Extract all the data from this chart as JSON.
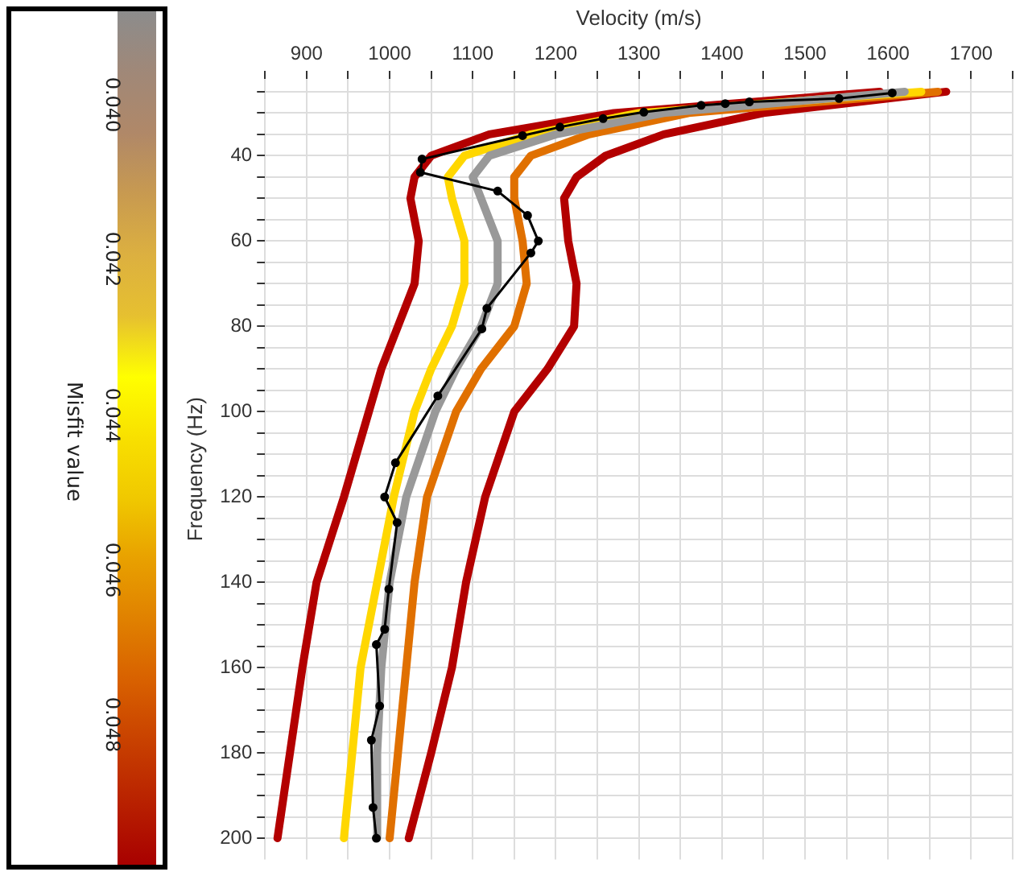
{
  "chart_data": {
    "type": "line",
    "xlabel": "Velocity (m/s)",
    "ylabel": "Frequency (Hz)",
    "clabel": "Misfit value",
    "clim": [
      0.0388,
      0.0498
    ],
    "cticks": [
      {
        "value": 0.04,
        "label": "0.040"
      },
      {
        "value": 0.042,
        "label": "0.042"
      },
      {
        "value": 0.044,
        "label": "0.044"
      },
      {
        "value": 0.046,
        "label": "0.046"
      },
      {
        "value": 0.048,
        "label": "0.048"
      }
    ],
    "xlim": [
      850,
      1750
    ],
    "ylim": [
      205,
      22
    ],
    "xticks": [
      {
        "value": 850,
        "label": null
      },
      900,
      {
        "value": 950,
        "label": null
      },
      1000,
      {
        "value": 1050,
        "label": null
      },
      1100,
      {
        "value": 1150,
        "label": null
      },
      1200,
      {
        "value": 1250,
        "label": null
      },
      1300,
      {
        "value": 1350,
        "label": null
      },
      1400,
      {
        "value": 1450,
        "label": null
      },
      1500,
      {
        "value": 1550,
        "label": null
      },
      1600,
      {
        "value": 1650,
        "label": null
      },
      1700,
      {
        "value": 1750,
        "label": null
      }
    ],
    "yticks": [
      {
        "value": 25,
        "label": null
      },
      {
        "value": 30,
        "label": null
      },
      {
        "value": 35,
        "label": null
      },
      40,
      {
        "value": 45,
        "label": null
      },
      {
        "value": 50,
        "label": null
      },
      {
        "value": 55,
        "label": null
      },
      60,
      {
        "value": 65,
        "label": null
      },
      {
        "value": 70,
        "label": null
      },
      {
        "value": 75,
        "label": null
      },
      80,
      {
        "value": 85,
        "label": null
      },
      {
        "value": 90,
        "label": null
      },
      {
        "value": 95,
        "label": null
      },
      100,
      {
        "value": 105,
        "label": null
      },
      {
        "value": 110,
        "label": null
      },
      {
        "value": 115,
        "label": null
      },
      120,
      {
        "value": 125,
        "label": null
      },
      {
        "value": 130,
        "label": null
      },
      {
        "value": 135,
        "label": null
      },
      140,
      {
        "value": 145,
        "label": null
      },
      {
        "value": 150,
        "label": null
      },
      {
        "value": 155,
        "label": null
      },
      160,
      {
        "value": 165,
        "label": null
      },
      {
        "value": 170,
        "label": null
      },
      {
        "value": 175,
        "label": null
      },
      180,
      {
        "value": 185,
        "label": null
      },
      {
        "value": 190,
        "label": null
      },
      {
        "value": 195,
        "label": null
      },
      200
    ],
    "grid": true,
    "legend": false,
    "line_style": "solid",
    "series": [
      {
        "color": "#b30000",
        "marker": "none",
        "x": [
          1590,
          1270,
          1120,
          1050,
          1030,
          1025,
          1035,
          1030,
          1010,
          990,
          975,
          945,
          912,
          895,
          880,
          865
        ],
        "values": [
          25,
          30,
          35,
          40,
          45,
          50,
          60,
          70,
          80,
          90,
          100,
          120,
          140,
          160,
          180,
          200
        ]
      },
      {
        "color": "#b30000",
        "marker": "none",
        "x": [
          1670,
          1450,
          1330,
          1260,
          1225,
          1210,
          1215,
          1225,
          1222,
          1190,
          1150,
          1115,
          1092,
          1075,
          1050,
          1023
        ],
        "values": [
          25,
          30,
          35,
          40,
          45,
          50,
          60,
          70,
          80,
          90,
          100,
          120,
          140,
          160,
          180,
          200
        ]
      },
      {
        "color": "#e07000",
        "marker": "none",
        "x": [
          1660,
          1360,
          1240,
          1170,
          1150,
          1150,
          1160,
          1165,
          1150,
          1110,
          1080,
          1045,
          1030,
          1020,
          1010,
          1000
        ],
        "values": [
          25,
          30,
          35,
          40,
          45,
          50,
          60,
          70,
          80,
          90,
          100,
          120,
          140,
          160,
          180,
          200
        ]
      },
      {
        "color": "#ffd700",
        "marker": "none",
        "x": [
          1640,
          1300,
          1170,
          1090,
          1070,
          1075,
          1090,
          1090,
          1075,
          1050,
          1030,
          1005,
          985,
          965,
          955,
          945
        ],
        "values": [
          25,
          30,
          35,
          40,
          45,
          50,
          60,
          70,
          80,
          90,
          100,
          120,
          140,
          160,
          180,
          200
        ]
      },
      {
        "color": "#999999",
        "marker": "none",
        "x": [
          1620,
          1330,
          1200,
          1120,
          1100,
          1110,
          1130,
          1130,
          1110,
          1080,
          1055,
          1020,
          1000,
          990,
          985,
          985
        ],
        "values": [
          25,
          30,
          35,
          40,
          45,
          50,
          60,
          70,
          80,
          90,
          100,
          120,
          140,
          160,
          180,
          200
        ]
      },
      {
        "color": "#000000",
        "marker": "circle",
        "x": [
          1605,
          1541,
          1433,
          1404,
          1375,
          1306,
          1257,
          1205,
          1160,
          1039,
          1037,
          1130,
          1166,
          1179,
          1170,
          1117,
          1111,
          1058,
          1007,
          994,
          1009,
          999,
          994,
          984,
          988,
          978,
          980,
          984
        ],
        "values": [
          25.3,
          26.6,
          27.4,
          27.8,
          28.2,
          29.8,
          31.3,
          33.3,
          35.3,
          40.8,
          43.9,
          48.3,
          54,
          60,
          62.8,
          75.8,
          80.6,
          96.3,
          112,
          120,
          126,
          141.6,
          151,
          154.6,
          169,
          177,
          192.8,
          200
        ]
      }
    ]
  }
}
